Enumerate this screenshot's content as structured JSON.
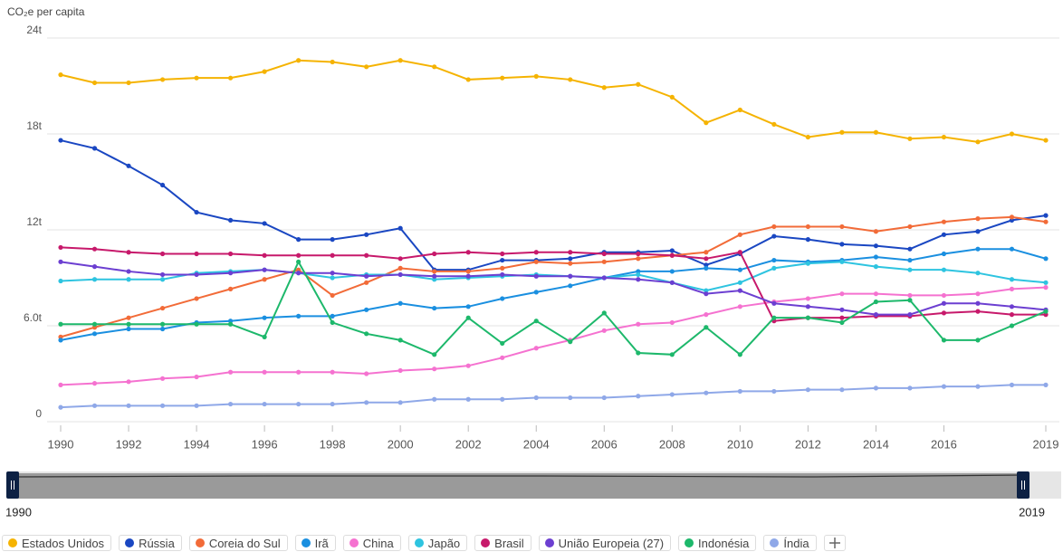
{
  "chart_data": {
    "type": "line",
    "y_label": "CO₂e per capita",
    "x": [
      1990,
      1991,
      1992,
      1993,
      1994,
      1995,
      1996,
      1997,
      1998,
      1999,
      2000,
      2001,
      2002,
      2003,
      2004,
      2005,
      2006,
      2007,
      2008,
      2009,
      2010,
      2011,
      2012,
      2013,
      2014,
      2015,
      2016,
      2017,
      2018,
      2019
    ],
    "xlim": [
      1990,
      2019
    ],
    "xticks": [
      1990,
      1992,
      1994,
      1996,
      1998,
      2000,
      2002,
      2004,
      2006,
      2008,
      2010,
      2012,
      2014,
      2016,
      2019
    ],
    "ylim": [
      0,
      24
    ],
    "yticks": [
      0,
      {
        "value": 6,
        "label": "6.0t"
      },
      {
        "value": 12,
        "label": "12t"
      },
      {
        "value": 18,
        "label": "18t"
      },
      {
        "value": 24,
        "label": "24t"
      }
    ],
    "grid": true,
    "series": [
      {
        "name": "Estados Unidos",
        "color": "#f5b301",
        "values": [
          21.7,
          21.2,
          21.2,
          21.4,
          21.5,
          21.5,
          21.9,
          22.6,
          22.5,
          22.2,
          22.6,
          22.2,
          21.4,
          21.5,
          21.6,
          21.4,
          20.9,
          21.1,
          20.3,
          18.7,
          19.5,
          18.6,
          17.8,
          18.1,
          18.1,
          17.7,
          17.8,
          17.5,
          18.0,
          17.6
        ]
      },
      {
        "name": "Rússia",
        "color": "#1a47c2",
        "values": [
          17.6,
          17.1,
          16.0,
          14.8,
          13.1,
          12.6,
          12.4,
          11.4,
          11.4,
          11.7,
          12.1,
          9.5,
          9.5,
          10.1,
          10.1,
          10.2,
          10.6,
          10.6,
          10.7,
          9.8,
          10.5,
          11.6,
          11.4,
          11.1,
          11.0,
          10.8,
          11.7,
          11.9,
          12.6,
          12.9
        ]
      },
      {
        "name": "Coreia do Sul",
        "color": "#f26b38",
        "values": [
          5.3,
          5.9,
          6.5,
          7.1,
          7.7,
          8.3,
          8.9,
          9.5,
          7.9,
          8.7,
          9.6,
          9.4,
          9.4,
          9.6,
          10.0,
          9.9,
          10.0,
          10.2,
          10.4,
          10.6,
          11.7,
          12.2,
          12.2,
          12.2,
          11.9,
          12.2,
          12.5,
          12.7,
          12.8,
          12.5
        ]
      },
      {
        "name": "Irã",
        "color": "#1a8fe0",
        "values": [
          5.1,
          5.5,
          5.8,
          5.8,
          6.2,
          6.3,
          6.5,
          6.6,
          6.6,
          7.0,
          7.4,
          7.1,
          7.2,
          7.7,
          8.1,
          8.5,
          9.0,
          9.4,
          9.4,
          9.6,
          9.5,
          10.1,
          10.0,
          10.1,
          10.3,
          10.1,
          10.5,
          10.8,
          10.8,
          10.2
        ]
      },
      {
        "name": "China",
        "color": "#f572d0",
        "values": [
          2.3,
          2.4,
          2.5,
          2.7,
          2.8,
          3.1,
          3.1,
          3.1,
          3.1,
          3.0,
          3.2,
          3.3,
          3.5,
          4.0,
          4.6,
          5.1,
          5.7,
          6.1,
          6.2,
          6.7,
          7.2,
          7.5,
          7.7,
          8.0,
          8.0,
          7.9,
          7.9,
          8.0,
          8.3,
          8.4
        ]
      },
      {
        "name": "Japão",
        "color": "#2ec4e0",
        "values": [
          8.8,
          8.9,
          8.9,
          8.9,
          9.3,
          9.4,
          9.5,
          9.3,
          9.0,
          9.2,
          9.2,
          8.9,
          9.0,
          9.1,
          9.2,
          9.1,
          9.0,
          9.2,
          8.7,
          8.2,
          8.7,
          9.6,
          9.9,
          10.0,
          9.7,
          9.5,
          9.5,
          9.3,
          8.9,
          8.7
        ]
      },
      {
        "name": "Brasil",
        "color": "#c7196b",
        "values": [
          10.9,
          10.8,
          10.6,
          10.5,
          10.5,
          10.5,
          10.4,
          10.4,
          10.4,
          10.4,
          10.2,
          10.5,
          10.6,
          10.5,
          10.6,
          10.6,
          10.5,
          10.5,
          10.4,
          10.2,
          10.6,
          6.3,
          6.5,
          6.5,
          6.6,
          6.6,
          6.8,
          6.9,
          6.7,
          6.7
        ]
      },
      {
        "name": "União Europeia (27)",
        "color": "#6c3fd1",
        "values": [
          10.0,
          9.7,
          9.4,
          9.2,
          9.2,
          9.3,
          9.5,
          9.3,
          9.3,
          9.1,
          9.2,
          9.1,
          9.1,
          9.2,
          9.1,
          9.1,
          9.0,
          8.9,
          8.7,
          8.0,
          8.2,
          7.4,
          7.2,
          7.0,
          6.7,
          6.7,
          7.4,
          7.4,
          7.2,
          7.0
        ]
      },
      {
        "name": "Indonésia",
        "color": "#1db86b",
        "values": [
          6.1,
          6.1,
          6.1,
          6.1,
          6.1,
          6.1,
          5.3,
          10.0,
          6.2,
          5.5,
          5.1,
          4.2,
          6.5,
          4.9,
          6.3,
          5.0,
          6.8,
          4.3,
          4.2,
          5.9,
          4.2,
          6.5,
          6.5,
          6.2,
          7.5,
          7.6,
          5.1,
          5.1,
          6.0,
          6.9
        ]
      },
      {
        "name": "Índia",
        "color": "#8fa8e8",
        "values": [
          0.9,
          1.0,
          1.0,
          1.0,
          1.0,
          1.1,
          1.1,
          1.1,
          1.1,
          1.2,
          1.2,
          1.4,
          1.4,
          1.4,
          1.5,
          1.5,
          1.5,
          1.6,
          1.7,
          1.8,
          1.9,
          1.9,
          2.0,
          2.0,
          2.1,
          2.1,
          2.2,
          2.2,
          2.3,
          2.3
        ]
      }
    ]
  }
}
